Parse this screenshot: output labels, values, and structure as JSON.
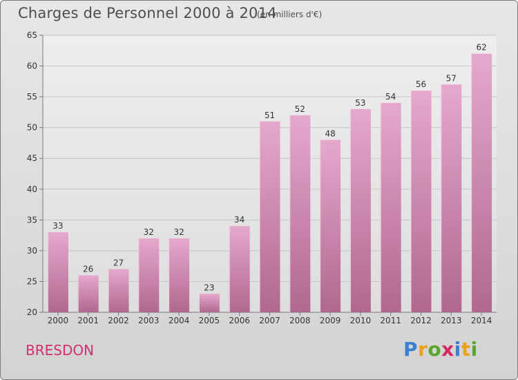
{
  "header": {
    "title": "Charges de Personnel 2000 à 2014",
    "subtitle": "(en milliers d'€)"
  },
  "footer": {
    "town": "BRESDON",
    "logo_text": "Proxiti"
  },
  "colors": {
    "bar_light": "#e6a8cd",
    "bar_dark": "#b0688f",
    "grid": "#c8c8c8",
    "town": "#d0306f"
  },
  "chart_data": {
    "type": "bar",
    "title": "Charges de Personnel 2000 à 2014",
    "subtitle": "(en milliers d'€)",
    "xlabel": "",
    "ylabel": "",
    "categories": [
      "2000",
      "2001",
      "2002",
      "2003",
      "2004",
      "2005",
      "2006",
      "2007",
      "2008",
      "2009",
      "2010",
      "2011",
      "2012",
      "2013",
      "2014"
    ],
    "values": [
      33,
      26,
      27,
      32,
      32,
      23,
      34,
      51,
      52,
      48,
      53,
      54,
      56,
      57,
      62
    ],
    "ylim": [
      20,
      65
    ],
    "yticks": [
      20,
      25,
      30,
      35,
      40,
      45,
      50,
      55,
      60,
      65
    ],
    "grid": true,
    "data_labels": true
  }
}
